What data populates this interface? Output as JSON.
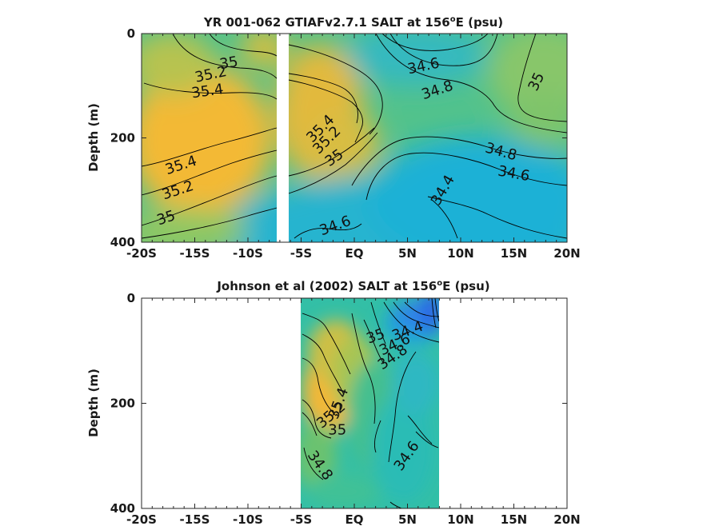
{
  "chart_data": [
    {
      "type": "heatmap",
      "title": "YR 001-062 GTIAFv2.7.1 SALT at 156",
      "title_sup": "o",
      "title_suffix": "E (psu)",
      "ylabel": "Depth (m)",
      "xlabel": "",
      "x_ticks": [
        "-20S",
        "-15S",
        "-10S",
        "-5S",
        "EQ",
        "5N",
        "10N",
        "15N",
        "20N"
      ],
      "y_ticks": [
        "0",
        "200",
        "400"
      ],
      "xlim": [
        -20,
        20
      ],
      "ylim": [
        0,
        400
      ],
      "contour_labels": [
        {
          "text": "35",
          "lat": -11.8,
          "depth": 56,
          "angle": -10
        },
        {
          "text": "35.2",
          "lat": -13.5,
          "depth": 78,
          "angle": -12
        },
        {
          "text": "35.4",
          "lat": -13.8,
          "depth": 110,
          "angle": -8
        },
        {
          "text": "34.6",
          "lat": 6.5,
          "depth": 62,
          "angle": -12
        },
        {
          "text": "34.8",
          "lat": 7.8,
          "depth": 108,
          "angle": -18
        },
        {
          "text": "35",
          "lat": 17.1,
          "depth": 92,
          "angle": -65
        },
        {
          "text": "35.4",
          "lat": -3.2,
          "depth": 182,
          "angle": -45
        },
        {
          "text": "35.2",
          "lat": -2.6,
          "depth": 204,
          "angle": -45
        },
        {
          "text": "35",
          "lat": -1.9,
          "depth": 238,
          "angle": -35
        },
        {
          "text": "34.8",
          "lat": 13.8,
          "depth": 226,
          "angle": 15
        },
        {
          "text": "34.6",
          "lat": 15.0,
          "depth": 268,
          "angle": 10
        },
        {
          "text": "34.4",
          "lat": 8.3,
          "depth": 300,
          "angle": -60
        },
        {
          "text": "35.4",
          "lat": -16.3,
          "depth": 252,
          "angle": -18
        },
        {
          "text": "35.2",
          "lat": -16.6,
          "depth": 300,
          "angle": -18
        },
        {
          "text": "35",
          "lat": -17.7,
          "depth": 353,
          "angle": -18
        },
        {
          "text": "34.6",
          "lat": -1.8,
          "depth": 368,
          "angle": -20
        }
      ],
      "missing_band": {
        "lat_min": -6.9,
        "lat_max": -6.3
      }
    },
    {
      "type": "heatmap",
      "title": "Johnson et al (2002) SALT at 156",
      "title_sup": "o",
      "title_suffix": "E (psu)",
      "ylabel": "Depth (m)",
      "xlabel": "",
      "x_ticks": [
        "-20S",
        "-15S",
        "-10S",
        "-5S",
        "EQ",
        "5N",
        "10N",
        "15N",
        "20N"
      ],
      "y_ticks": [
        "0",
        "200",
        "400"
      ],
      "xlim": [
        -20,
        20
      ],
      "ylim": [
        0,
        400
      ],
      "data_extent": {
        "lat_min": -5,
        "lat_max": 8
      },
      "contour_labels": [
        {
          "text": "34.4",
          "lat": 5.0,
          "depth": 62,
          "angle": -20
        },
        {
          "text": "34.6",
          "lat": 3.8,
          "depth": 88,
          "angle": -25
        },
        {
          "text": "34.8",
          "lat": 3.6,
          "depth": 112,
          "angle": -35
        },
        {
          "text": "35",
          "lat": 2.0,
          "depth": 72,
          "angle": -20
        },
        {
          "text": "35.4",
          "lat": -1.5,
          "depth": 200,
          "angle": -70
        },
        {
          "text": "35.2",
          "lat": -2.2,
          "depth": 222,
          "angle": -40
        },
        {
          "text": "35",
          "lat": -1.6,
          "depth": 250,
          "angle": 0
        },
        {
          "text": "34.8",
          "lat": -3.2,
          "depth": 318,
          "angle": 55
        },
        {
          "text": "34.6",
          "lat": 4.9,
          "depth": 300,
          "angle": -55
        }
      ]
    }
  ]
}
